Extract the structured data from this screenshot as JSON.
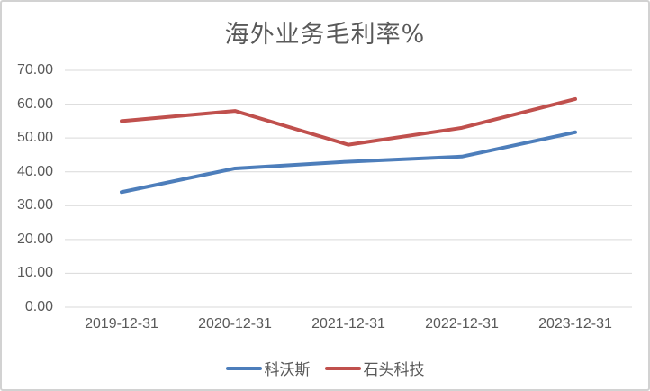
{
  "chart_data": {
    "type": "line",
    "title": "海外业务毛利率%",
    "categories": [
      "2019-12-31",
      "2020-12-31",
      "2021-12-31",
      "2022-12-31",
      "2023-12-31"
    ],
    "series": [
      {
        "name": "科沃斯",
        "color": "#4d7ebb",
        "values": [
          34.0,
          41.0,
          43.0,
          44.5,
          51.7
        ]
      },
      {
        "name": "石头科技",
        "color": "#c0504d",
        "values": [
          55.0,
          58.0,
          48.0,
          53.0,
          61.5
        ]
      }
    ],
    "xlabel": "",
    "ylabel": "",
    "ylim": [
      0,
      70
    ],
    "ytick_step": 10,
    "ytick_labels_top_to_bottom": [
      "70.00",
      "60.00",
      "50.00",
      "40.00",
      "30.00",
      "20.00",
      "10.00",
      "0.00"
    ],
    "grid": true,
    "legend_position": "bottom",
    "colors": {
      "gridline": "#d9d9d9",
      "axis_text": "#595959",
      "title_text": "#595959",
      "frame_border": "#d2d2d2",
      "background": "#ffffff"
    }
  }
}
